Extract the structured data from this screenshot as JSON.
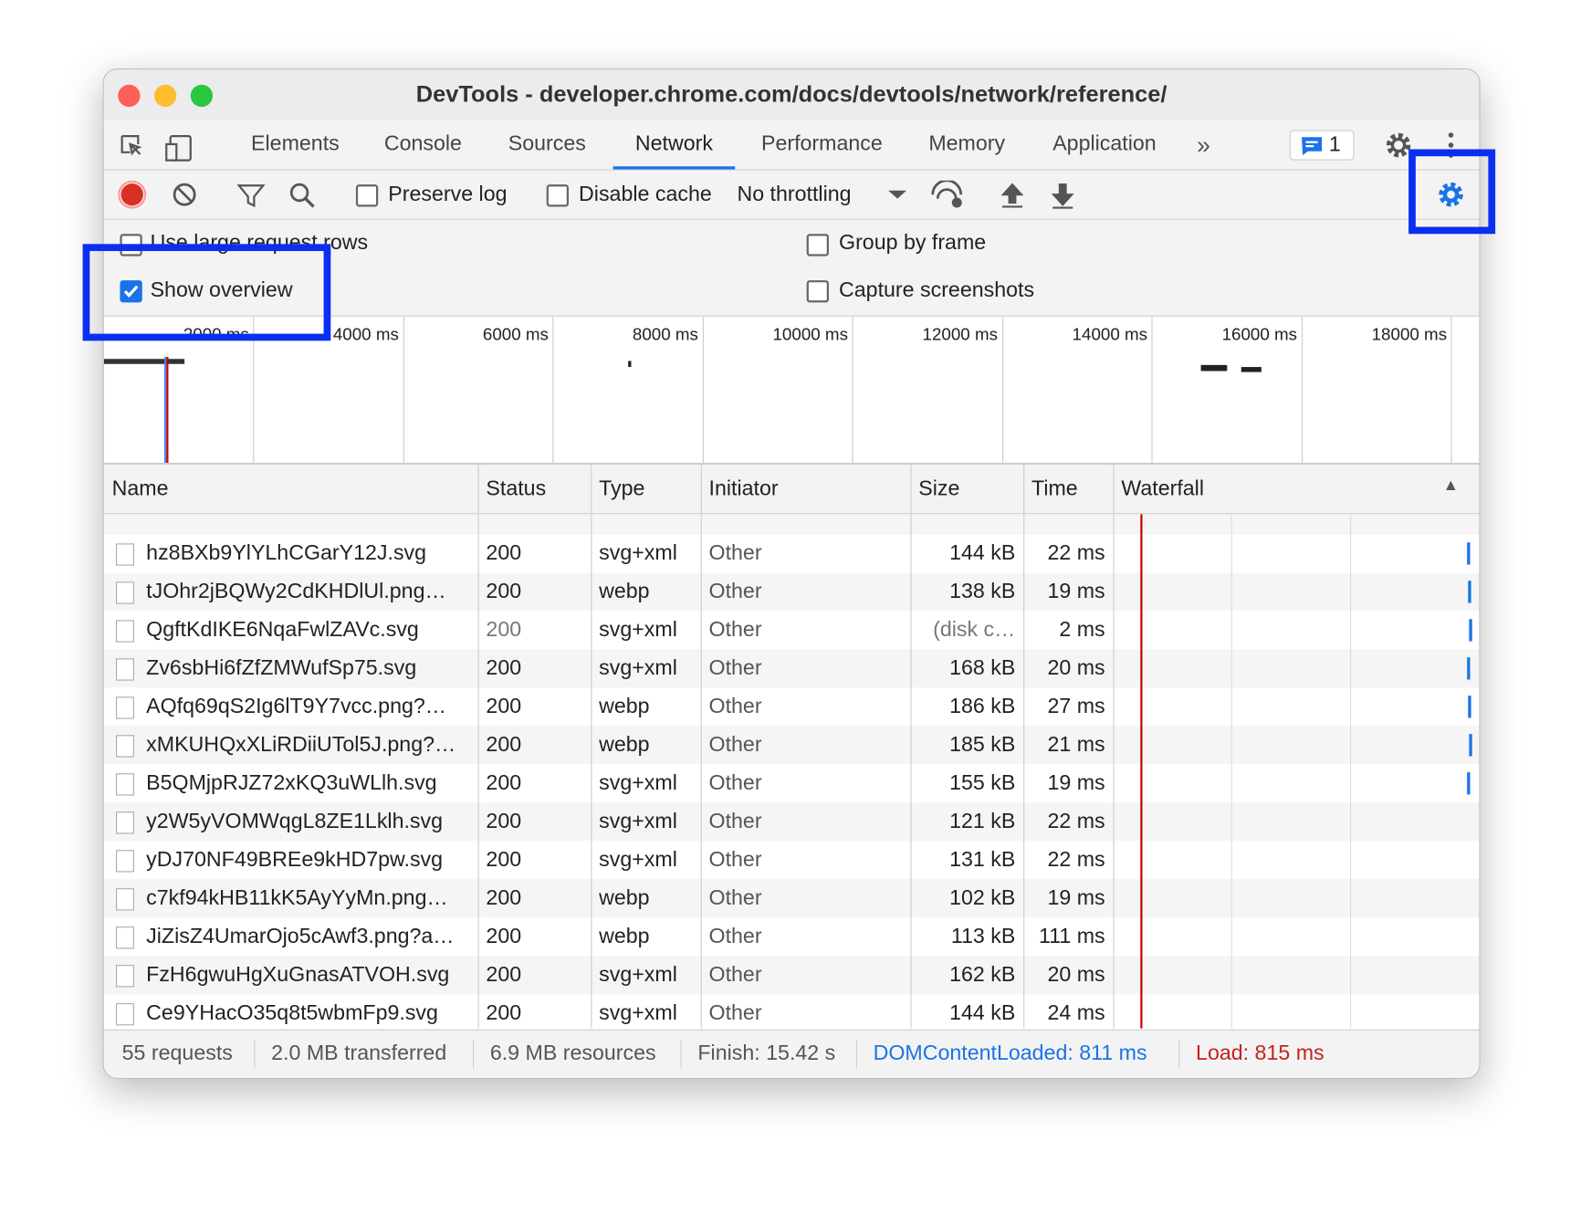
{
  "window": {
    "title": "DevTools - developer.chrome.com/docs/devtools/network/reference/"
  },
  "tabs": [
    "Elements",
    "Console",
    "Sources",
    "Network",
    "Performance",
    "Memory",
    "Application"
  ],
  "active_tab": 3,
  "issues_count": "1",
  "toolbar": {
    "preserve_log": "Preserve log",
    "disable_cache": "Disable cache",
    "throttling": "No throttling"
  },
  "settings": {
    "large_rows": "Use large request rows",
    "group_by_frame": "Group by frame",
    "show_overview": "Show overview",
    "capture_screenshots": "Capture screenshots"
  },
  "overview_ticks": [
    "2000 ms",
    "4000 ms",
    "6000 ms",
    "8000 ms",
    "10000 ms",
    "12000 ms",
    "14000 ms",
    "16000 ms",
    "18000 ms"
  ],
  "table": {
    "columns": [
      "Name",
      "Status",
      "Type",
      "Initiator",
      "Size",
      "Time",
      "Waterfall"
    ],
    "rows": [
      [
        "hz8BXb9YlYLhCGarY12J.svg",
        "200",
        "svg+xml",
        "Other",
        "144 kB",
        "22 ms"
      ],
      [
        "tJOhr2jBQWy2CdKHDlUl.png…",
        "200",
        "webp",
        "Other",
        "138 kB",
        "19 ms"
      ],
      [
        "QgftKdIKE6NqaFwlZAVc.svg",
        "200",
        "svg+xml",
        "Other",
        "(disk c…",
        "2 ms"
      ],
      [
        "Zv6sbHi6fZfZMWufSp75.svg",
        "200",
        "svg+xml",
        "Other",
        "168 kB",
        "20 ms"
      ],
      [
        "AQfq69qS2Ig6lT9Y7vcc.png?…",
        "200",
        "webp",
        "Other",
        "186 kB",
        "27 ms"
      ],
      [
        "xMKUHQxXLiRDiiUTol5J.png?…",
        "200",
        "webp",
        "Other",
        "185 kB",
        "21 ms"
      ],
      [
        "B5QMjpRJZ72xKQ3uWLlh.svg",
        "200",
        "svg+xml",
        "Other",
        "155 kB",
        "19 ms"
      ],
      [
        "y2W5yVOMWqgL8ZE1Lklh.svg",
        "200",
        "svg+xml",
        "Other",
        "121 kB",
        "22 ms"
      ],
      [
        "yDJ70NF49BREe9kHD7pw.svg",
        "200",
        "svg+xml",
        "Other",
        "131 kB",
        "22 ms"
      ],
      [
        "c7kf94kHB11kK5AyYyMn.png…",
        "200",
        "webp",
        "Other",
        "102 kB",
        "19 ms"
      ],
      [
        "JiZisZ4UmarOjo5cAwf3.png?a…",
        "200",
        "webp",
        "Other",
        "113 kB",
        "111 ms"
      ],
      [
        "FzH6gwuHgXuGnasATVOH.svg",
        "200",
        "svg+xml",
        "Other",
        "162 kB",
        "20 ms"
      ],
      [
        "Ce9YHacO35q8t5wbmFp9.svg",
        "200",
        "svg+xml",
        "Other",
        "144 kB",
        "24 ms"
      ]
    ]
  },
  "status": [
    "55 requests",
    "2.0 MB transferred",
    "6.9 MB resources",
    "Finish: 15.42 s",
    "DOMContentLoaded: 811 ms",
    "Load: 815 ms"
  ]
}
